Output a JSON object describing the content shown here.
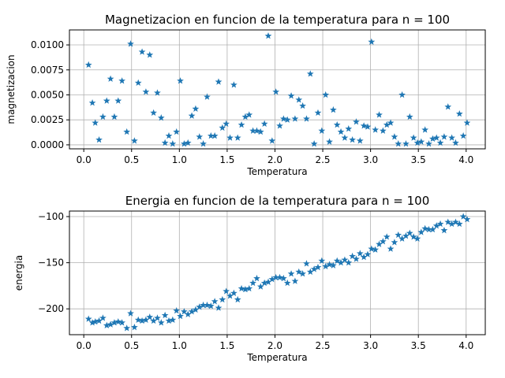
{
  "chart_data": [
    {
      "type": "scatter",
      "title": "Magnetizacion en funcion de la temperatura para n = 100",
      "xlabel": "Temperatura",
      "ylabel": "magnetizacion",
      "xlim": [
        -0.15,
        4.2
      ],
      "ylim": [
        -0.0004,
        0.0115
      ],
      "grid": true,
      "marker": "star",
      "color": "#1f77b4",
      "xticks": [
        0.0,
        0.5,
        1.0,
        1.5,
        2.0,
        2.5,
        3.0,
        3.5,
        4.0
      ],
      "xtick_labels": [
        "0.0",
        "0.5",
        "1.0",
        "1.5",
        "2.0",
        "2.5",
        "3.0",
        "3.5",
        "4.0"
      ],
      "yticks": [
        0.0,
        0.0025,
        0.005,
        0.0075,
        0.01
      ],
      "ytick_labels": [
        "0.0000",
        "0.0025",
        "0.0050",
        "0.0075",
        "0.0100"
      ],
      "x": [
        0.05,
        0.09,
        0.12,
        0.16,
        0.2,
        0.24,
        0.28,
        0.32,
        0.36,
        0.4,
        0.45,
        0.49,
        0.53,
        0.57,
        0.61,
        0.65,
        0.69,
        0.73,
        0.77,
        0.81,
        0.85,
        0.89,
        0.93,
        0.97,
        1.01,
        1.05,
        1.09,
        1.13,
        1.17,
        1.21,
        1.25,
        1.29,
        1.33,
        1.37,
        1.41,
        1.45,
        1.49,
        1.53,
        1.57,
        1.61,
        1.65,
        1.69,
        1.73,
        1.77,
        1.81,
        1.85,
        1.89,
        1.93,
        1.97,
        2.01,
        2.05,
        2.09,
        2.13,
        2.17,
        2.21,
        2.25,
        2.29,
        2.33,
        2.37,
        2.41,
        2.45,
        2.49,
        2.53,
        2.57,
        2.61,
        2.65,
        2.69,
        2.73,
        2.77,
        2.81,
        2.85,
        2.89,
        2.93,
        2.97,
        3.01,
        3.05,
        3.09,
        3.13,
        3.17,
        3.21,
        3.25,
        3.29,
        3.33,
        3.37,
        3.41,
        3.45,
        3.49,
        3.53,
        3.57,
        3.61,
        3.65,
        3.69,
        3.73,
        3.77,
        3.81,
        3.85,
        3.89,
        3.93,
        3.97,
        4.01
      ],
      "y": [
        0.008,
        0.0042,
        0.0022,
        0.0005,
        0.0028,
        0.0044,
        0.0066,
        0.0028,
        0.0044,
        0.0064,
        0.0013,
        0.0101,
        0.0004,
        0.0062,
        0.0093,
        0.0053,
        0.009,
        0.0032,
        0.0052,
        0.0027,
        0.0002,
        0.0009,
        0.0001,
        0.0013,
        0.0064,
        0.0001,
        0.0002,
        0.0029,
        0.0036,
        0.0008,
        0.0001,
        0.0048,
        0.0009,
        0.0009,
        0.0063,
        0.0017,
        0.0021,
        0.0007,
        0.006,
        0.0007,
        0.002,
        0.0028,
        0.003,
        0.0014,
        0.0014,
        0.0013,
        0.0021,
        0.0109,
        0.0004,
        0.0053,
        0.0019,
        0.0026,
        0.0025,
        0.0049,
        0.0026,
        0.0045,
        0.0039,
        0.0026,
        0.0071,
        0.0001,
        0.0032,
        0.0014,
        0.005,
        0.0003,
        0.0035,
        0.002,
        0.0013,
        0.0007,
        0.0016,
        0.0005,
        0.0023,
        0.0004,
        0.0019,
        0.0018,
        0.0103,
        0.0015,
        0.003,
        0.0014,
        0.002,
        0.0022,
        0.0008,
        0.0001,
        0.005,
        0.0001,
        0.0028,
        0.0007,
        0.0002,
        0.0003,
        0.0015,
        0.0001,
        0.0006,
        0.0007,
        0.0002,
        0.0008,
        0.0038,
        0.0007,
        0.0002,
        0.0031,
        0.0009,
        0.0022
      ]
    },
    {
      "type": "scatter",
      "title": "Energia en funcion de la temperatura para n = 100",
      "xlabel": "Temperatura",
      "ylabel": "energia",
      "xlim": [
        -0.15,
        4.2
      ],
      "ylim": [
        -228,
        -94
      ],
      "grid": true,
      "marker": "star",
      "color": "#1f77b4",
      "xticks": [
        0.0,
        0.5,
        1.0,
        1.5,
        2.0,
        2.5,
        3.0,
        3.5,
        4.0
      ],
      "xtick_labels": [
        "0.0",
        "0.5",
        "1.0",
        "1.5",
        "2.0",
        "2.5",
        "3.0",
        "3.5",
        "4.0"
      ],
      "yticks": [
        -200,
        -150,
        -100
      ],
      "ytick_labels": [
        "−200",
        "−150",
        "−100"
      ],
      "x": [
        0.05,
        0.09,
        0.12,
        0.16,
        0.2,
        0.24,
        0.28,
        0.32,
        0.36,
        0.4,
        0.45,
        0.49,
        0.53,
        0.57,
        0.61,
        0.65,
        0.69,
        0.73,
        0.77,
        0.81,
        0.85,
        0.89,
        0.93,
        0.97,
        1.01,
        1.05,
        1.09,
        1.13,
        1.17,
        1.21,
        1.25,
        1.29,
        1.33,
        1.37,
        1.41,
        1.45,
        1.49,
        1.53,
        1.57,
        1.61,
        1.65,
        1.69,
        1.73,
        1.77,
        1.81,
        1.85,
        1.89,
        1.93,
        1.97,
        2.01,
        2.05,
        2.09,
        2.13,
        2.17,
        2.21,
        2.25,
        2.29,
        2.33,
        2.37,
        2.41,
        2.45,
        2.49,
        2.53,
        2.57,
        2.61,
        2.65,
        2.69,
        2.73,
        2.77,
        2.81,
        2.85,
        2.89,
        2.93,
        2.97,
        3.01,
        3.05,
        3.09,
        3.13,
        3.17,
        3.21,
        3.25,
        3.29,
        3.33,
        3.37,
        3.41,
        3.45,
        3.49,
        3.53,
        3.57,
        3.61,
        3.65,
        3.69,
        3.73,
        3.77,
        3.81,
        3.85,
        3.89,
        3.93,
        3.97,
        4.01
      ],
      "y": [
        -211,
        -215,
        -214,
        -213,
        -210,
        -218,
        -217,
        -215,
        -214,
        -215,
        -221,
        -205,
        -220,
        -212,
        -213,
        -212,
        -209,
        -213,
        -210,
        -215,
        -207,
        -213,
        -212,
        -202,
        -208,
        -203,
        -206,
        -203,
        -201,
        -198,
        -196,
        -196,
        -197,
        -192,
        -199,
        -190,
        -181,
        -186,
        -183,
        -190,
        -178,
        -179,
        -178,
        -172,
        -167,
        -176,
        -172,
        -171,
        -168,
        -166,
        -166,
        -167,
        -172,
        -162,
        -170,
        -160,
        -162,
        -151,
        -160,
        -157,
        -155,
        -148,
        -154,
        -152,
        -153,
        -148,
        -150,
        -147,
        -150,
        -143,
        -146,
        -140,
        -144,
        -141,
        -135,
        -136,
        -130,
        -127,
        -122,
        -135,
        -128,
        -120,
        -124,
        -121,
        -118,
        -122,
        -124,
        -117,
        -113,
        -114,
        -114,
        -110,
        -108,
        -115,
        -106,
        -108,
        -106,
        -108,
        -100,
        -103
      ]
    }
  ]
}
